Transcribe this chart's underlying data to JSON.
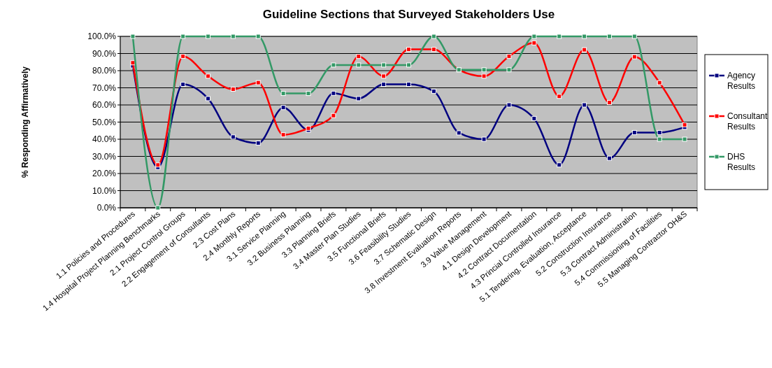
{
  "chart_data": {
    "type": "line",
    "title": "Guideline Sections that Surveyed Stakeholders Use",
    "ylabel": "% Responding Affirmatively",
    "categories": [
      "1.1 Policies and Procedures",
      "1.4 Hospital Project Planning Benchmarks",
      "2.1 Project Control Groups",
      "2.2 Engagement of Consultants",
      "2.3 Cost Plans",
      "2.4 Monthly Reports",
      "3.1 Service Planning",
      "3.2 Business Planning",
      "3.3 Planning Briefs",
      "3.4 Master Plan Studies",
      "3.5 Functional Briefs",
      "3.6 Feasibility Studies",
      "3.7 Schematic Design",
      "3.8 Investment Evaluation Reports",
      "3.9 Value Management",
      "4.1 Design Development",
      "4.2 Contract Documentation",
      "4.3 Princial Controlled Insurance",
      "5.1 Tendering, Evaluation, Acceptance",
      "5.2 Construction Insurance",
      "5.3 Contract Administration",
      "5.4 Commissioning of Facilities",
      "5.5 Managing Contractor OH&S"
    ],
    "series": [
      {
        "name": "Agency Results",
        "color": "#000080",
        "values": [
          82.8,
          23.6,
          72,
          63.7,
          41.3,
          37.8,
          58.5,
          45.3,
          66.8,
          63.7,
          72,
          72,
          68,
          43.7,
          40,
          60,
          52.1,
          25,
          60,
          28.9,
          43.9,
          43.9,
          47
        ]
      },
      {
        "name": "Consultant Results",
        "color": "#ff0000",
        "values": [
          84.6,
          25,
          88.4,
          76.8,
          69.2,
          73,
          42.6,
          46.4,
          53.8,
          88.3,
          76.8,
          92.4,
          92.4,
          80.5,
          76.8,
          88.4,
          96.2,
          65,
          92.2,
          61.4,
          88.1,
          73,
          48.4
        ]
      },
      {
        "name": "DHS Results",
        "color": "#339966",
        "values": [
          100,
          0,
          100,
          100,
          100,
          100,
          66.7,
          66.7,
          83.3,
          83.3,
          83.3,
          83.3,
          100,
          80.5,
          80.5,
          80.5,
          100,
          100,
          100,
          100,
          100,
          40,
          40
        ]
      }
    ],
    "ylim": [
      0,
      100
    ],
    "yticks": [
      {
        "value": 0,
        "label": "0.0%"
      },
      {
        "value": 10,
        "label": "10.0%"
      },
      {
        "value": 20,
        "label": "20.0%"
      },
      {
        "value": 30,
        "label": "30.0%"
      },
      {
        "value": 40,
        "label": "40.0%"
      },
      {
        "value": 50,
        "label": "50.0%"
      },
      {
        "value": 60,
        "label": "60.0%"
      },
      {
        "value": 70,
        "label": "70.0%"
      },
      {
        "value": 80,
        "label": "80.0%"
      },
      {
        "value": 90,
        "label": "90.0%"
      },
      {
        "value": 100,
        "label": "100.0%"
      }
    ],
    "grid": "y",
    "legend": "right",
    "marker": "square",
    "line_style": "solid"
  }
}
